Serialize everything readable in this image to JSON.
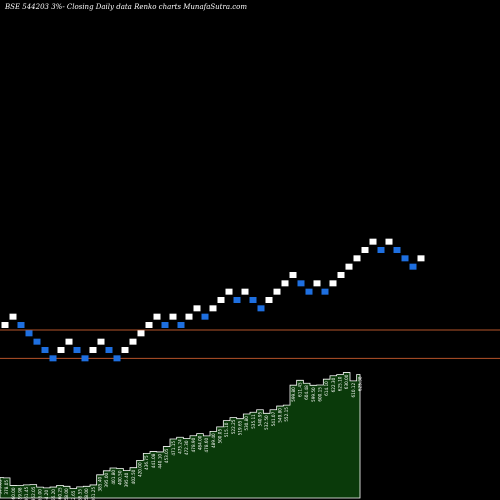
{
  "title": "BSE 544203 3%- Closing Daily data Renko charts MunafaSutra.com",
  "colors": {
    "background": "#000000",
    "up_brick": "#ffffff",
    "down_brick": "#1e6fe0",
    "reference_line": "#b5532a",
    "volume_area": "#0a3a0a",
    "volume_outline": "#ffffff",
    "label_text": "#ffffff"
  },
  "chart_data": [
    {
      "type": "renko",
      "title": "BSE 544203 3%- Closing Daily data Renko charts MunafaSutra.com",
      "bricks": [
        {
          "value": 21,
          "dir": "up"
        },
        {
          "value": 22,
          "dir": "up"
        },
        {
          "value": 21,
          "dir": "down"
        },
        {
          "value": 20,
          "dir": "down"
        },
        {
          "value": 19,
          "dir": "down"
        },
        {
          "value": 18,
          "dir": "down"
        },
        {
          "value": 17,
          "dir": "down"
        },
        {
          "value": 18,
          "dir": "up"
        },
        {
          "value": 19,
          "dir": "up"
        },
        {
          "value": 18,
          "dir": "down"
        },
        {
          "value": 17,
          "dir": "down"
        },
        {
          "value": 18,
          "dir": "up"
        },
        {
          "value": 19,
          "dir": "up"
        },
        {
          "value": 18,
          "dir": "down"
        },
        {
          "value": 17,
          "dir": "down"
        },
        {
          "value": 18,
          "dir": "up"
        },
        {
          "value": 19,
          "dir": "up"
        },
        {
          "value": 20,
          "dir": "up"
        },
        {
          "value": 21,
          "dir": "up"
        },
        {
          "value": 22,
          "dir": "up"
        },
        {
          "value": 21,
          "dir": "down"
        },
        {
          "value": 22,
          "dir": "up"
        },
        {
          "value": 21,
          "dir": "down"
        },
        {
          "value": 22,
          "dir": "up"
        },
        {
          "value": 23,
          "dir": "up"
        },
        {
          "value": 22,
          "dir": "down"
        },
        {
          "value": 23,
          "dir": "up"
        },
        {
          "value": 24,
          "dir": "up"
        },
        {
          "value": 25,
          "dir": "up"
        },
        {
          "value": 24,
          "dir": "down"
        },
        {
          "value": 25,
          "dir": "up"
        },
        {
          "value": 24,
          "dir": "down"
        },
        {
          "value": 23,
          "dir": "down"
        },
        {
          "value": 24,
          "dir": "up"
        },
        {
          "value": 25,
          "dir": "up"
        },
        {
          "value": 26,
          "dir": "up"
        },
        {
          "value": 27,
          "dir": "up"
        },
        {
          "value": 26,
          "dir": "down"
        },
        {
          "value": 25,
          "dir": "down"
        },
        {
          "value": 26,
          "dir": "up"
        },
        {
          "value": 25,
          "dir": "down"
        },
        {
          "value": 26,
          "dir": "up"
        },
        {
          "value": 27,
          "dir": "up"
        },
        {
          "value": 28,
          "dir": "up"
        },
        {
          "value": 29,
          "dir": "up"
        },
        {
          "value": 30,
          "dir": "up"
        },
        {
          "value": 31,
          "dir": "up"
        },
        {
          "value": 30,
          "dir": "down"
        },
        {
          "value": 31,
          "dir": "up"
        },
        {
          "value": 30,
          "dir": "down"
        },
        {
          "value": 29,
          "dir": "down"
        },
        {
          "value": 28,
          "dir": "down"
        },
        {
          "value": 29,
          "dir": "up"
        }
      ],
      "reference_lines": [
        20.4,
        17.0
      ],
      "ylim": [
        0,
        60
      ],
      "grid": false,
      "legend": "none"
    },
    {
      "type": "area",
      "x_labels": [
        "379.05",
        "378.05",
        "360.00",
        "359.98",
        "361.45",
        "362.05",
        "356.00",
        "354.20",
        "356.20",
        "360.25",
        "358.00",
        "352.65",
        "356.55",
        "358.00",
        "361.25",
        "385.40",
        "395.00",
        "401.80",
        "400.50",
        "395.40",
        "402.50",
        "420.00",
        "436.75",
        "441.08",
        "440.10",
        "453.05",
        "471.15",
        "475.24",
        "472.30",
        "478.90",
        "484.00",
        "478.60",
        "489.40",
        "500.05",
        "515.10",
        "522.25",
        "519.65",
        "530.80",
        "535.11",
        "540.95",
        "532.50",
        "541.07",
        "549.80",
        "552.15",
        "599.80",
        "611.45",
        "604.48",
        "599.50",
        "600.15",
        "614.10",
        "622.30",
        "625.10",
        "630.00",
        "610.12",
        "625.38"
      ],
      "values": [
        379.05,
        378.05,
        360.0,
        359.98,
        361.45,
        362.05,
        356.0,
        354.2,
        356.2,
        360.25,
        358.0,
        352.65,
        356.55,
        358.0,
        361.25,
        385.4,
        395.0,
        401.8,
        400.5,
        395.4,
        402.5,
        420.0,
        436.75,
        441.08,
        440.1,
        453.05,
        471.15,
        475.24,
        472.3,
        478.9,
        484.0,
        478.6,
        489.4,
        500.05,
        515.1,
        522.25,
        519.65,
        530.8,
        535.11,
        540.95,
        532.5,
        541.07,
        549.8,
        552.15,
        599.8,
        611.45,
        604.48,
        599.5,
        600.15,
        614.1,
        622.3,
        625.1,
        630.0,
        610.12,
        625.38
      ],
      "ylim": [
        330,
        660
      ]
    }
  ]
}
